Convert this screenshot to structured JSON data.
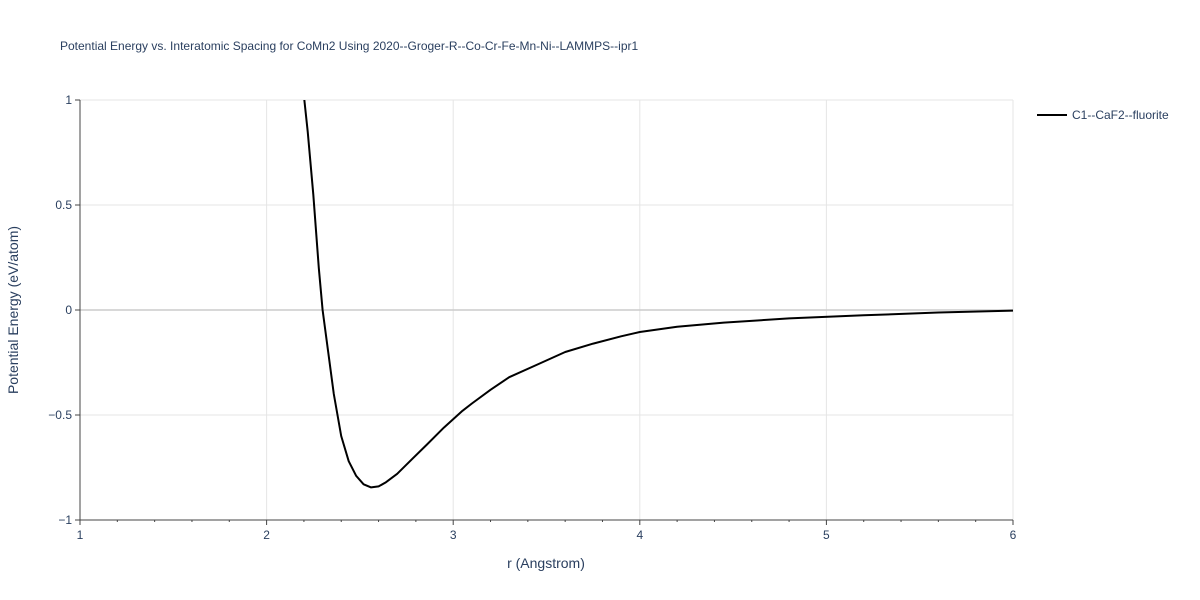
{
  "chart_data": {
    "type": "line",
    "title": "Potential Energy vs. Interatomic Spacing for CoMn2 Using 2020--Groger-R--Co-Cr-Fe-Mn-Ni--LAMMPS--ipr1",
    "xlabel": "r (Angstrom)",
    "ylabel": "Potential Energy (eV/atom)",
    "xlim": [
      1,
      6
    ],
    "ylim": [
      -1,
      1
    ],
    "x_ticks": [
      1,
      2,
      3,
      4,
      5,
      6
    ],
    "x_tick_labels": [
      "1",
      "2",
      "3",
      "4",
      "5",
      "6"
    ],
    "y_ticks": [
      -1,
      -0.5,
      0,
      0.5,
      1
    ],
    "y_tick_labels": [
      "−1",
      "−0.5",
      "0",
      "0.5",
      "1"
    ],
    "grid": true,
    "legend_position": "top-right",
    "series": [
      {
        "name": "C1--CaF2--fluorite",
        "color": "#000000",
        "x": [
          2.2,
          2.22,
          2.25,
          2.28,
          2.3,
          2.33,
          2.36,
          2.4,
          2.44,
          2.48,
          2.52,
          2.56,
          2.6,
          2.64,
          2.7,
          2.78,
          2.86,
          2.95,
          3.05,
          3.1,
          3.2,
          3.3,
          3.45,
          3.6,
          3.75,
          3.9,
          4.0,
          4.2,
          4.45,
          4.8,
          5.2,
          5.6,
          6.0
        ],
        "y": [
          1.02,
          0.85,
          0.55,
          0.2,
          0.0,
          -0.2,
          -0.4,
          -0.6,
          -0.72,
          -0.79,
          -0.83,
          -0.845,
          -0.84,
          -0.82,
          -0.78,
          -0.71,
          -0.64,
          -0.56,
          -0.48,
          -0.445,
          -0.38,
          -0.32,
          -0.26,
          -0.2,
          -0.16,
          -0.125,
          -0.105,
          -0.08,
          -0.06,
          -0.04,
          -0.025,
          -0.012,
          -0.003
        ]
      }
    ]
  }
}
